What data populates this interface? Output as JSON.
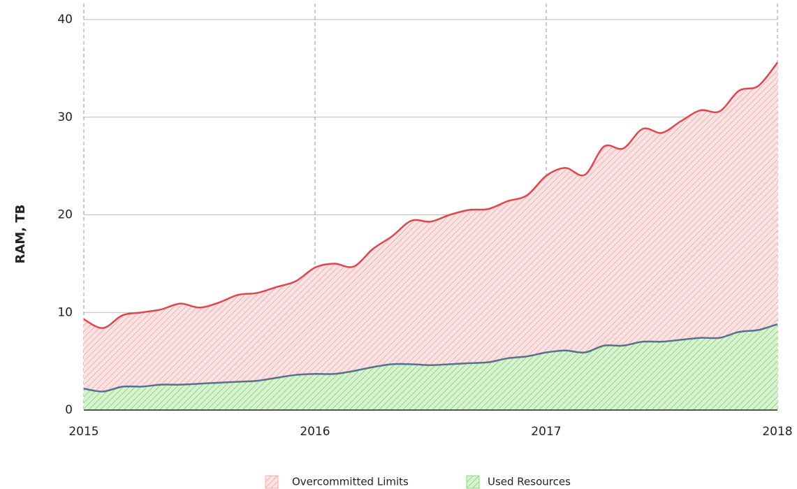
{
  "chart_data": {
    "type": "area",
    "y_label": "RAM, TB",
    "x": [
      2015,
      2015.083,
      2015.167,
      2015.25,
      2015.333,
      2015.417,
      2015.5,
      2015.583,
      2015.667,
      2015.75,
      2015.833,
      2015.917,
      2016,
      2016.083,
      2016.167,
      2016.25,
      2016.333,
      2016.417,
      2016.5,
      2016.583,
      2016.667,
      2016.75,
      2016.833,
      2016.917,
      2017,
      2017.083,
      2017.167,
      2017.25,
      2017.333,
      2017.417,
      2017.5,
      2017.583,
      2017.667,
      2017.75,
      2017.833,
      2017.917,
      2018
    ],
    "series": [
      {
        "name": "Overcommitted Limits",
        "color": "#e0474c",
        "values": [
          9.3,
          8.4,
          9.7,
          10.0,
          10.3,
          10.9,
          10.5,
          11.0,
          11.8,
          12.0,
          12.6,
          13.2,
          14.6,
          15.0,
          14.7,
          16.5,
          17.8,
          19.4,
          19.3,
          20.0,
          20.5,
          20.6,
          21.4,
          22.0,
          24.0,
          24.8,
          24.1,
          27.0,
          26.8,
          28.8,
          28.4,
          29.6,
          30.7,
          30.6,
          32.7,
          33.2,
          35.6
        ]
      },
      {
        "name": "Used Resources",
        "color": "#5a6f8a",
        "values": [
          2.2,
          1.9,
          2.4,
          2.4,
          2.6,
          2.6,
          2.7,
          2.8,
          2.9,
          3.0,
          3.3,
          3.6,
          3.7,
          3.7,
          4.0,
          4.4,
          4.7,
          4.7,
          4.6,
          4.7,
          4.8,
          4.9,
          5.3,
          5.5,
          5.9,
          6.1,
          5.9,
          6.6,
          6.6,
          7.0,
          7.0,
          7.2,
          7.4,
          7.4,
          8.0,
          8.2,
          8.8
        ]
      }
    ],
    "xlim": [
      2015,
      2018
    ],
    "xticks": [
      2015,
      2016,
      2017,
      2018
    ],
    "ylim": [
      0,
      40
    ],
    "yticks": [
      0,
      10,
      20,
      30,
      40
    ],
    "grid": true
  }
}
